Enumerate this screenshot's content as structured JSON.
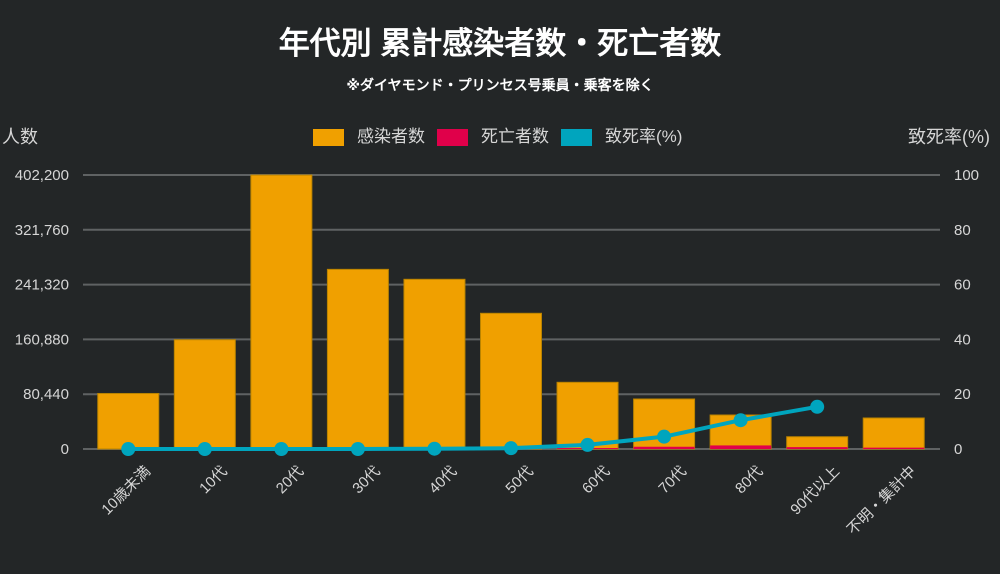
{
  "chart_data": {
    "type": "bar",
    "title": "年代別 累計感染者数・死亡者数",
    "subtitle": "※ダイヤモンド・プリンセス号乗員・乗客を除く",
    "xlabel": "",
    "ylabel": "人数",
    "y2label": "致死率(%)",
    "ylim": [
      0,
      402200
    ],
    "y2lim": [
      0,
      100
    ],
    "yticks": [
      0,
      80440,
      160880,
      241320,
      321760,
      402200
    ],
    "ytick_labels": [
      "0",
      "80,440",
      "160,880",
      "241,320",
      "321,760",
      "402,200"
    ],
    "y2ticks": [
      0,
      20,
      40,
      60,
      80,
      100
    ],
    "y2tick_labels": [
      "0",
      "20",
      "40",
      "60",
      "80",
      "100"
    ],
    "grid": true,
    "legend_position": "top",
    "categories": [
      "10歳未満",
      "10代",
      "20代",
      "30代",
      "40代",
      "50代",
      "60代",
      "70代",
      "80代",
      "90代以上",
      "不明・集計中"
    ],
    "series": [
      {
        "name": "感染者数",
        "type": "bar",
        "axis": "left",
        "color": "#f0a000",
        "values": [
          81500,
          160400,
          402100,
          263700,
          249100,
          199200,
          97900,
          73400,
          49900,
          18000,
          45500
        ]
      },
      {
        "name": "死亡者数",
        "type": "bar",
        "axis": "left",
        "color": "#e0004a",
        "values": [
          0,
          0,
          20,
          60,
          250,
          600,
          1430,
          3300,
          5240,
          2770,
          2000
        ]
      },
      {
        "name": "致死率(%)",
        "type": "line",
        "axis": "right",
        "color": "#00a5be",
        "values": [
          0.0,
          0.0,
          0.0,
          0.0,
          0.1,
          0.3,
          1.5,
          4.5,
          10.5,
          15.4,
          null
        ]
      }
    ]
  },
  "colors": {
    "background": "#232627",
    "grid": "#5f6263",
    "text": "#d6d6d6",
    "title": "#ffffff"
  }
}
